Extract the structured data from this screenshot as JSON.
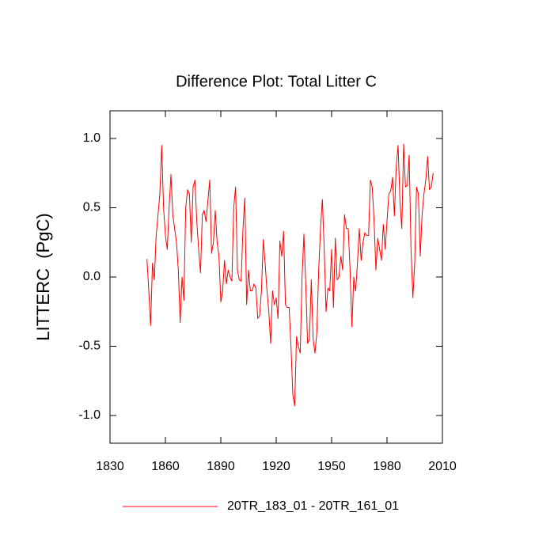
{
  "chart_data": {
    "type": "line",
    "title": "Difference Plot: Total Litter C",
    "ylabel": "LITTERC  (PgC)",
    "x": [
      1850,
      1851,
      1852,
      1853,
      1854,
      1855,
      1856,
      1857,
      1858,
      1859,
      1860,
      1861,
      1862,
      1863,
      1864,
      1865,
      1866,
      1867,
      1868,
      1869,
      1870,
      1871,
      1872,
      1873,
      1874,
      1875,
      1876,
      1877,
      1878,
      1879,
      1880,
      1881,
      1882,
      1883,
      1884,
      1885,
      1886,
      1887,
      1888,
      1889,
      1890,
      1891,
      1892,
      1893,
      1894,
      1895,
      1896,
      1897,
      1898,
      1899,
      1900,
      1901,
      1902,
      1903,
      1904,
      1905,
      1906,
      1907,
      1908,
      1909,
      1910,
      1911,
      1912,
      1913,
      1914,
      1915,
      1916,
      1917,
      1918,
      1919,
      1920,
      1921,
      1922,
      1923,
      1924,
      1925,
      1926,
      1927,
      1928,
      1929,
      1930,
      1931,
      1932,
      1933,
      1934,
      1935,
      1936,
      1937,
      1938,
      1939,
      1940,
      1941,
      1942,
      1943,
      1944,
      1945,
      1946,
      1947,
      1948,
      1949,
      1950,
      1951,
      1952,
      1953,
      1954,
      1955,
      1956,
      1957,
      1958,
      1959,
      1960,
      1961,
      1962,
      1963,
      1964,
      1965,
      1966,
      1967,
      1968,
      1969,
      1970,
      1971,
      1972,
      1973,
      1974,
      1975,
      1976,
      1977,
      1978,
      1979,
      1980,
      1981,
      1982,
      1983,
      1984,
      1985,
      1986,
      1987,
      1988,
      1989,
      1990,
      1991,
      1992,
      1993,
      1994,
      1995,
      1996,
      1997,
      1998,
      1999,
      2000,
      2001,
      2002,
      2003,
      2004,
      2005
    ],
    "series": [
      {
        "name": "20TR_183_01 - 20TR_161_01",
        "color": "#ff0000",
        "values": [
          0.13,
          -0.1,
          -0.35,
          0.1,
          -0.02,
          0.3,
          0.45,
          0.6,
          0.95,
          0.5,
          0.3,
          0.2,
          0.5,
          0.74,
          0.45,
          0.35,
          0.25,
          0.05,
          -0.33,
          0.0,
          -0.17,
          0.5,
          0.63,
          0.6,
          0.25,
          0.65,
          0.7,
          0.4,
          0.2,
          0.03,
          0.45,
          0.48,
          0.4,
          0.55,
          0.7,
          0.17,
          0.25,
          0.48,
          0.25,
          0.15,
          -0.18,
          -0.1,
          0.12,
          -0.05,
          0.05,
          0.0,
          -0.03,
          0.5,
          0.65,
          0.05,
          -0.02,
          -0.03,
          0.35,
          0.57,
          -0.2,
          0.05,
          -0.1,
          -0.1,
          -0.05,
          -0.08,
          -0.3,
          -0.28,
          -0.1,
          0.27,
          0.1,
          -0.1,
          -0.25,
          -0.48,
          -0.1,
          -0.2,
          -0.15,
          -0.3,
          0.26,
          0.15,
          0.33,
          -0.2,
          -0.22,
          -0.22,
          -0.5,
          -0.85,
          -0.93,
          -0.43,
          -0.5,
          -0.55,
          0.0,
          0.31,
          -0.05,
          -0.48,
          -0.45,
          -0.02,
          -0.45,
          -0.55,
          -0.4,
          0.05,
          0.35,
          0.56,
          0.2,
          -0.25,
          -0.08,
          -0.1,
          0.2,
          -0.22,
          0.28,
          -0.02,
          0.0,
          0.15,
          0.05,
          0.45,
          0.35,
          0.35,
          0.05,
          -0.36,
          0.0,
          -0.1,
          0.1,
          0.35,
          0.12,
          0.25,
          0.32,
          0.3,
          0.3,
          0.7,
          0.65,
          0.4,
          0.05,
          0.28,
          0.2,
          0.12,
          0.38,
          0.2,
          0.4,
          0.6,
          0.62,
          0.72,
          0.44,
          0.8,
          0.95,
          0.55,
          0.35,
          0.96,
          0.65,
          0.66,
          0.88,
          0.2,
          -0.15,
          0.1,
          0.65,
          0.6,
          0.15,
          0.45,
          0.6,
          0.7,
          0.87,
          0.63,
          0.65,
          0.75
        ]
      }
    ],
    "xlim": [
      1830,
      2010
    ],
    "xticks": [
      1830,
      1860,
      1890,
      1920,
      1950,
      1980,
      2010
    ],
    "ylim": [
      -1.2,
      1.2
    ],
    "yticks": [
      {
        "value": -1.0,
        "label": "-1.0"
      },
      {
        "value": -0.5,
        "label": "-0.5"
      },
      {
        "value": 0,
        "label": "0.0"
      },
      {
        "value": 0.5,
        "label": "0.5"
      },
      {
        "value": 1.0,
        "label": "1.0"
      }
    ],
    "legend": "bottom",
    "grid": false
  }
}
